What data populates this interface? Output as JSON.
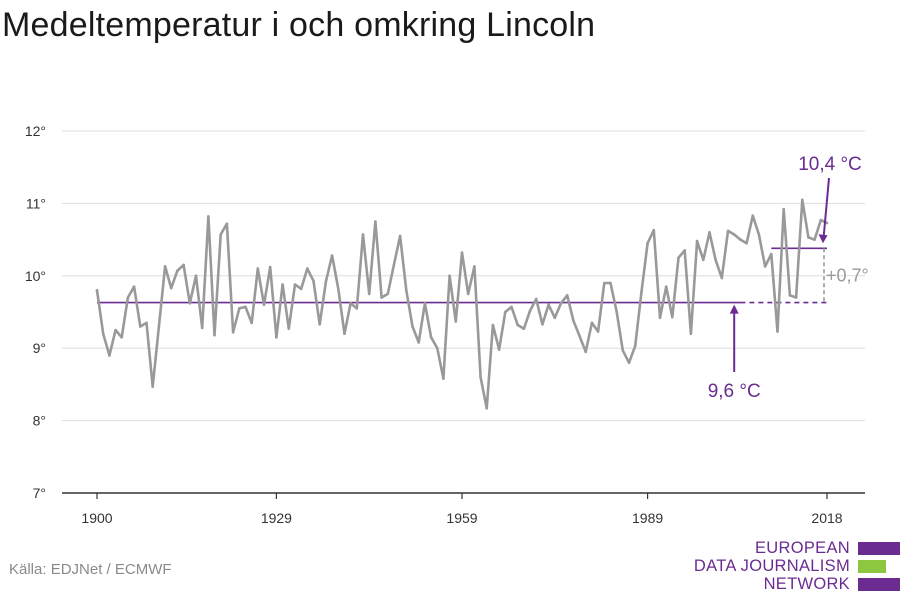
{
  "chart_title": "Medeltemperatur i och omkring Lincoln",
  "source": "Källa: EDJNet / ECMWF",
  "logo": {
    "lines": [
      "EUROPEAN",
      "DATA JOURNALISM",
      "NETWORK"
    ],
    "colors": [
      "#6b2c91",
      "#8dc63f",
      "#6b2c91"
    ]
  },
  "chart_data": {
    "type": "line",
    "title": "Medeltemperatur i och omkring Lincoln",
    "xlabel": "",
    "ylabel": "",
    "xlim": [
      1900,
      2018
    ],
    "ylim": [
      7,
      12
    ],
    "y_ticks": [
      7,
      8,
      9,
      10,
      11,
      12
    ],
    "y_tick_labels": [
      "7°",
      "8°",
      "9°",
      "10°",
      "11°",
      "12°"
    ],
    "x_ticks": [
      1900,
      1929,
      1959,
      1989,
      2018
    ],
    "x_tick_labels": [
      "1900",
      "1929",
      "1959",
      "1989",
      "2018"
    ],
    "grid": "horizontal",
    "series_color": "#999999",
    "accent_color": "#6b2c91",
    "x": [
      1900,
      1901,
      1902,
      1903,
      1904,
      1905,
      1906,
      1907,
      1908,
      1909,
      1910,
      1911,
      1912,
      1913,
      1914,
      1915,
      1916,
      1917,
      1918,
      1919,
      1920,
      1921,
      1922,
      1923,
      1924,
      1925,
      1926,
      1927,
      1928,
      1929,
      1930,
      1931,
      1932,
      1933,
      1934,
      1935,
      1936,
      1937,
      1938,
      1939,
      1940,
      1941,
      1942,
      1943,
      1944,
      1945,
      1946,
      1947,
      1948,
      1949,
      1950,
      1951,
      1952,
      1953,
      1954,
      1955,
      1956,
      1957,
      1958,
      1959,
      1960,
      1961,
      1962,
      1963,
      1964,
      1965,
      1966,
      1967,
      1968,
      1969,
      1970,
      1971,
      1972,
      1973,
      1974,
      1975,
      1976,
      1977,
      1978,
      1979,
      1980,
      1981,
      1982,
      1983,
      1984,
      1985,
      1986,
      1987,
      1988,
      1989,
      1990,
      1991,
      1992,
      1993,
      1994,
      1995,
      1996,
      1997,
      1998,
      1999,
      2000,
      2001,
      2002,
      2003,
      2004,
      2005,
      2006,
      2007,
      2008,
      2009,
      2010,
      2011,
      2012,
      2013,
      2014,
      2015,
      2016,
      2017,
      2018
    ],
    "values": [
      9.8,
      9.2,
      8.9,
      9.25,
      9.15,
      9.7,
      9.85,
      9.3,
      9.35,
      8.47,
      9.3,
      10.13,
      9.83,
      10.07,
      10.15,
      9.62,
      10.0,
      9.28,
      10.82,
      9.18,
      10.57,
      10.72,
      9.22,
      9.55,
      9.57,
      9.35,
      10.1,
      9.6,
      10.12,
      9.15,
      9.88,
      9.27,
      9.88,
      9.82,
      10.1,
      9.93,
      9.33,
      9.92,
      10.28,
      9.82,
      9.2,
      9.62,
      9.55,
      10.57,
      9.75,
      10.75,
      9.7,
      9.75,
      10.15,
      10.55,
      9.8,
      9.3,
      9.08,
      9.62,
      9.15,
      9.0,
      8.58,
      10.0,
      9.37,
      10.32,
      9.75,
      10.13,
      8.6,
      8.17,
      9.32,
      8.98,
      9.5,
      9.57,
      9.32,
      9.27,
      9.52,
      9.68,
      9.33,
      9.6,
      9.42,
      9.62,
      9.73,
      9.38,
      9.17,
      8.95,
      9.35,
      9.23,
      9.9,
      9.9,
      9.5,
      8.97,
      8.8,
      9.03,
      9.77,
      10.45,
      10.63,
      9.42,
      9.85,
      9.43,
      10.25,
      10.35,
      9.2,
      10.48,
      10.22,
      10.6,
      10.22,
      9.97,
      10.62,
      10.57,
      10.5,
      10.45,
      10.83,
      10.57,
      10.13,
      10.3,
      9.23,
      10.92,
      9.73,
      9.7,
      11.05,
      10.53,
      10.5,
      10.77,
      10.73
    ],
    "reference_lines": [
      {
        "label": "9,6 °C",
        "value": 9.63,
        "from": 1900,
        "to": 2018
      },
      {
        "label": "10,4 °C",
        "value": 10.38,
        "from": 2009,
        "to": 2018
      }
    ],
    "difference_label": "+0,7°"
  }
}
